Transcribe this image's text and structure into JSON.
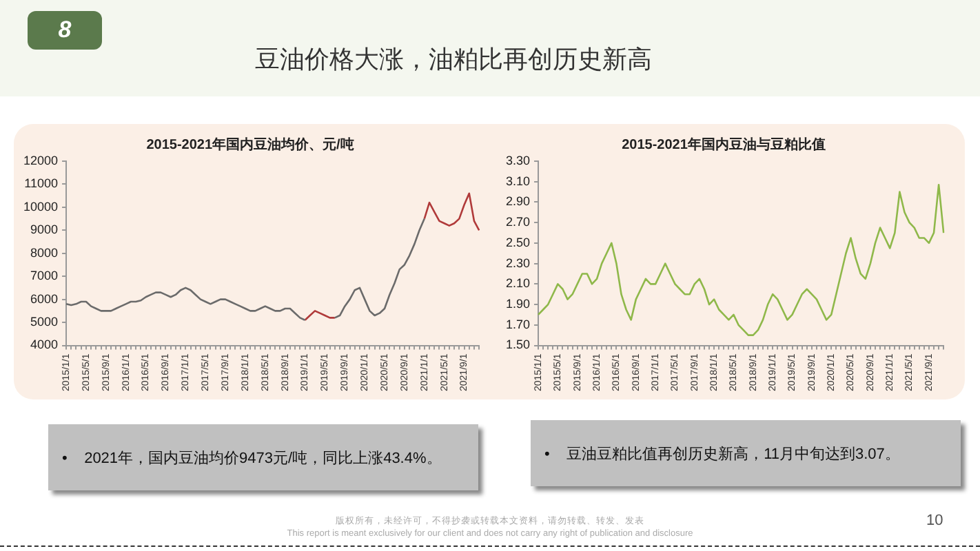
{
  "chart_data": [
    {
      "type": "line",
      "title": "2015-2021年国内豆油均价、元/吨",
      "categories": [
        "2015/1/1",
        null,
        null,
        null,
        "2015/5/1",
        null,
        null,
        null,
        "2015/9/1",
        null,
        null,
        null,
        "2016/1/1",
        null,
        null,
        null,
        "2016/5/1",
        null,
        null,
        null,
        "2016/9/1",
        null,
        null,
        null,
        "2017/1/1",
        null,
        null,
        null,
        "2017/5/1",
        null,
        null,
        null,
        "2017/9/1",
        null,
        null,
        null,
        "2018/1/1",
        null,
        null,
        null,
        "2018/5/1",
        null,
        null,
        null,
        "2018/9/1",
        null,
        null,
        null,
        "2019/1/1",
        null,
        null,
        null,
        "2019/5/1",
        null,
        null,
        null,
        "2019/9/1",
        null,
        null,
        null,
        "2020/1/1",
        null,
        null,
        null,
        "2020/5/1",
        null,
        null,
        null,
        "2020/9/1",
        null,
        null,
        null,
        "2021/1/1",
        null,
        null,
        null,
        "2021/5/1",
        null,
        null,
        null,
        "2021/9/1",
        null,
        null,
        null
      ],
      "series": [
        {
          "color": "#6b6b6b",
          "values": [
            5800,
            5750,
            5800,
            5900,
            5900,
            5700,
            5600,
            5500,
            5500,
            5500,
            5600,
            5700,
            5800,
            5900,
            5900,
            5950,
            6100,
            6200,
            6300,
            6300,
            6200,
            6100,
            6200,
            6400,
            6500,
            6400,
            6200,
            6000,
            5900,
            5800,
            5900,
            6000,
            6000,
            5900,
            5800,
            5700,
            5600,
            5500,
            5500,
            5600,
            5700,
            5600,
            5500,
            5500,
            5600,
            5600,
            5400,
            5200,
            5100,
            null,
            null,
            null,
            null,
            null,
            5200,
            5300,
            5700,
            6000,
            6400,
            6500,
            6000,
            5500,
            5300,
            5400,
            5600,
            6200,
            6700,
            7300,
            7500,
            7900,
            8400,
            9000,
            9500,
            null,
            null,
            null,
            null,
            null,
            null,
            null,
            null,
            null,
            null,
            null
          ]
        },
        {
          "color": "#b03a3a",
          "values": [
            null,
            null,
            null,
            null,
            null,
            null,
            null,
            null,
            null,
            null,
            null,
            null,
            null,
            null,
            null,
            null,
            null,
            null,
            null,
            null,
            null,
            null,
            null,
            null,
            null,
            null,
            null,
            null,
            null,
            null,
            null,
            null,
            null,
            null,
            null,
            null,
            null,
            null,
            null,
            null,
            null,
            null,
            null,
            null,
            null,
            null,
            null,
            null,
            5100,
            5300,
            5500,
            5400,
            5300,
            5200,
            5200,
            null,
            null,
            null,
            null,
            null,
            null,
            null,
            null,
            null,
            null,
            null,
            null,
            null,
            null,
            null,
            null,
            null,
            9500,
            10200,
            9800,
            9400,
            9300,
            9200,
            9300,
            9500,
            10100,
            10600,
            9400,
            9000
          ]
        }
      ],
      "ylim": [
        4000,
        12000
      ],
      "yticks": [
        4000,
        5000,
        6000,
        7000,
        8000,
        9000,
        10000,
        11000,
        12000
      ],
      "grid": false,
      "legend": false,
      "marker": "none",
      "line_style": "solid",
      "annotations": [
        "•    2021年，国内豆油均价9473元/吨，同比上涨43.4%。"
      ]
    },
    {
      "type": "line",
      "title": "2015-2021年国内豆油与豆粕比值",
      "categories": [
        "2015/1/1",
        null,
        null,
        null,
        "2015/5/1",
        null,
        null,
        null,
        "2015/9/1",
        null,
        null,
        null,
        "2016/1/1",
        null,
        null,
        null,
        "2016/5/1",
        null,
        null,
        null,
        "2016/9/1",
        null,
        null,
        null,
        "2017/1/1",
        null,
        null,
        null,
        "2017/5/1",
        null,
        null,
        null,
        "2017/9/1",
        null,
        null,
        null,
        "2018/1/1",
        null,
        null,
        null,
        "2018/5/1",
        null,
        null,
        null,
        "2018/9/1",
        null,
        null,
        null,
        "2019/1/1",
        null,
        null,
        null,
        "2019/5/1",
        null,
        null,
        null,
        "2019/9/1",
        null,
        null,
        null,
        "2020/1/1",
        null,
        null,
        null,
        "2020/5/1",
        null,
        null,
        null,
        "2020/9/1",
        null,
        null,
        null,
        "2021/1/1",
        null,
        null,
        null,
        "2021/5/1",
        null,
        null,
        null,
        "2021/9/1",
        null,
        null,
        null
      ],
      "series": [
        {
          "color": "#8fb84a",
          "values": [
            1.8,
            1.85,
            1.9,
            2.0,
            2.1,
            2.05,
            1.95,
            2.0,
            2.1,
            2.2,
            2.2,
            2.1,
            2.15,
            2.3,
            2.4,
            2.5,
            2.3,
            2.0,
            1.85,
            1.75,
            1.95,
            2.05,
            2.15,
            2.1,
            2.1,
            2.2,
            2.3,
            2.2,
            2.1,
            2.05,
            2.0,
            2.0,
            2.1,
            2.15,
            2.05,
            1.9,
            1.95,
            1.85,
            1.8,
            1.75,
            1.8,
            1.7,
            1.65,
            1.6,
            1.6,
            1.65,
            1.75,
            1.9,
            2.0,
            1.95,
            1.85,
            1.75,
            1.8,
            1.9,
            2.0,
            2.05,
            2.0,
            1.95,
            1.85,
            1.75,
            1.8,
            2.0,
            2.2,
            2.4,
            2.55,
            2.35,
            2.2,
            2.15,
            2.3,
            2.5,
            2.65,
            2.55,
            2.45,
            2.6,
            3.0,
            2.8,
            2.7,
            2.65,
            2.55,
            2.55,
            2.5,
            2.6,
            3.07,
            2.6
          ]
        }
      ],
      "ylim": [
        1.5,
        3.3
      ],
      "yticks": [
        {
          "value": 1.5,
          "label": "1.50"
        },
        {
          "value": 1.7,
          "label": "1.70"
        },
        {
          "value": 1.9,
          "label": "1.90"
        },
        {
          "value": 2.1,
          "label": "2.10"
        },
        {
          "value": 2.3,
          "label": "2.30"
        },
        {
          "value": 2.5,
          "label": "2.50"
        },
        {
          "value": 2.7,
          "label": "2.70"
        },
        {
          "value": 2.9,
          "label": "2.90"
        },
        {
          "value": 3.1,
          "label": "3.10"
        },
        {
          "value": 3.3,
          "label": "3.30"
        }
      ],
      "grid": false,
      "legend": false,
      "marker": "none",
      "line_style": "solid",
      "annotations": [
        "•    豆油豆粕比值再创历史新高，11月中旬达到3.07。"
      ]
    },
    {
      "type": "other",
      "annotations": [
        "8",
        "豆油价格大涨，油粕比再创历史新高",
        "版权所有，未经许可，不得抄袭或转载本文资料，请勿转载、转发、发表",
        "This report is meant exclusively for our client and does not carry any right of publication and disclosure",
        "10"
      ]
    }
  ]
}
